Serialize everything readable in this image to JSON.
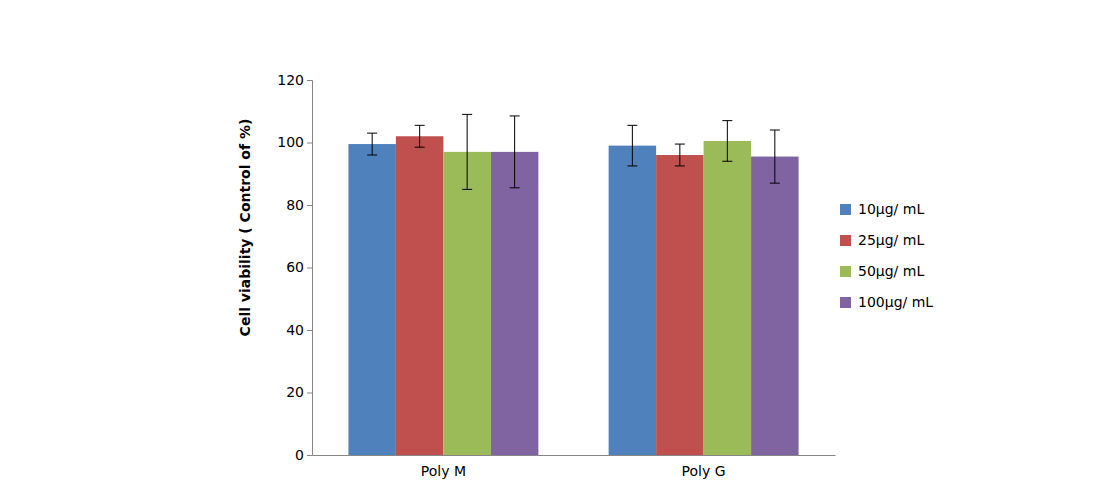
{
  "chart_data": {
    "type": "bar",
    "y_label": "Cell viability ( Control of %)",
    "categories": [
      "Poly M",
      "Poly G"
    ],
    "series": [
      {
        "name": "10μg/ mL",
        "color": "#4f81bd",
        "values": [
          99.5,
          99
        ],
        "errors": [
          3.5,
          6.5
        ]
      },
      {
        "name": "25μg/ mL",
        "color": "#c0504d",
        "values": [
          102,
          96
        ],
        "errors": [
          3.5,
          3.5
        ]
      },
      {
        "name": "50μg/ mL",
        "color": "#9bbb59",
        "values": [
          97,
          100.5
        ],
        "errors": [
          12,
          6.5
        ]
      },
      {
        "name": "100μg/ mL",
        "color": "#8064a2",
        "values": [
          97,
          95.5
        ],
        "errors": [
          11.5,
          8.5
        ]
      }
    ],
    "ylim": [
      0,
      120
    ],
    "yticks": [
      0,
      20,
      40,
      60,
      80,
      100,
      120
    ],
    "grid": false,
    "legend": "right"
  }
}
